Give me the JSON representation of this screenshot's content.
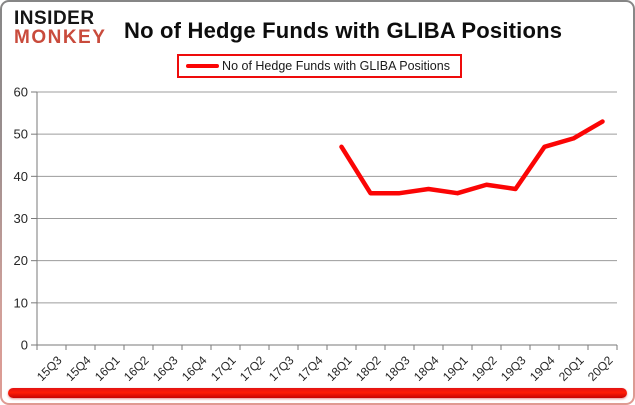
{
  "brand": {
    "line1": "INSIDER",
    "line2": "MONKEY",
    "line1_color": "#151515",
    "line2_color": "#c94b3c"
  },
  "header": {
    "title": "No of Hedge Funds with GLIBA Positions"
  },
  "legend": {
    "label": "No of Hedge Funds with GLIBA Positions",
    "box_border_color": "#ee0c0c"
  },
  "chart_data": {
    "type": "line",
    "title": "No of Hedge Funds with GLIBA Positions",
    "categories": [
      "15Q3",
      "15Q4",
      "16Q1",
      "16Q2",
      "16Q3",
      "16Q4",
      "17Q1",
      "17Q2",
      "17Q3",
      "17Q4",
      "18Q1",
      "18Q2",
      "18Q3",
      "18Q4",
      "19Q1",
      "19Q2",
      "19Q3",
      "19Q4",
      "20Q1",
      "20Q2"
    ],
    "series": [
      {
        "name": "No of Hedge Funds with GLIBA Positions",
        "color": "#fb0505",
        "values": [
          null,
          null,
          null,
          null,
          null,
          null,
          null,
          null,
          null,
          null,
          47,
          36,
          36,
          37,
          36,
          38,
          37,
          47,
          49,
          53
        ]
      }
    ],
    "xlabel": "",
    "ylabel": "",
    "ylim": [
      0,
      60
    ],
    "yticks": [
      0,
      10,
      20,
      30,
      40,
      50,
      60
    ],
    "grid": true,
    "legend_position": "top-center",
    "gridline_color": "#9c9c9c",
    "axis_color": "#7a7a7a",
    "tick_label_color": "#262626"
  },
  "footer": {
    "bar_color": "#e21313"
  }
}
